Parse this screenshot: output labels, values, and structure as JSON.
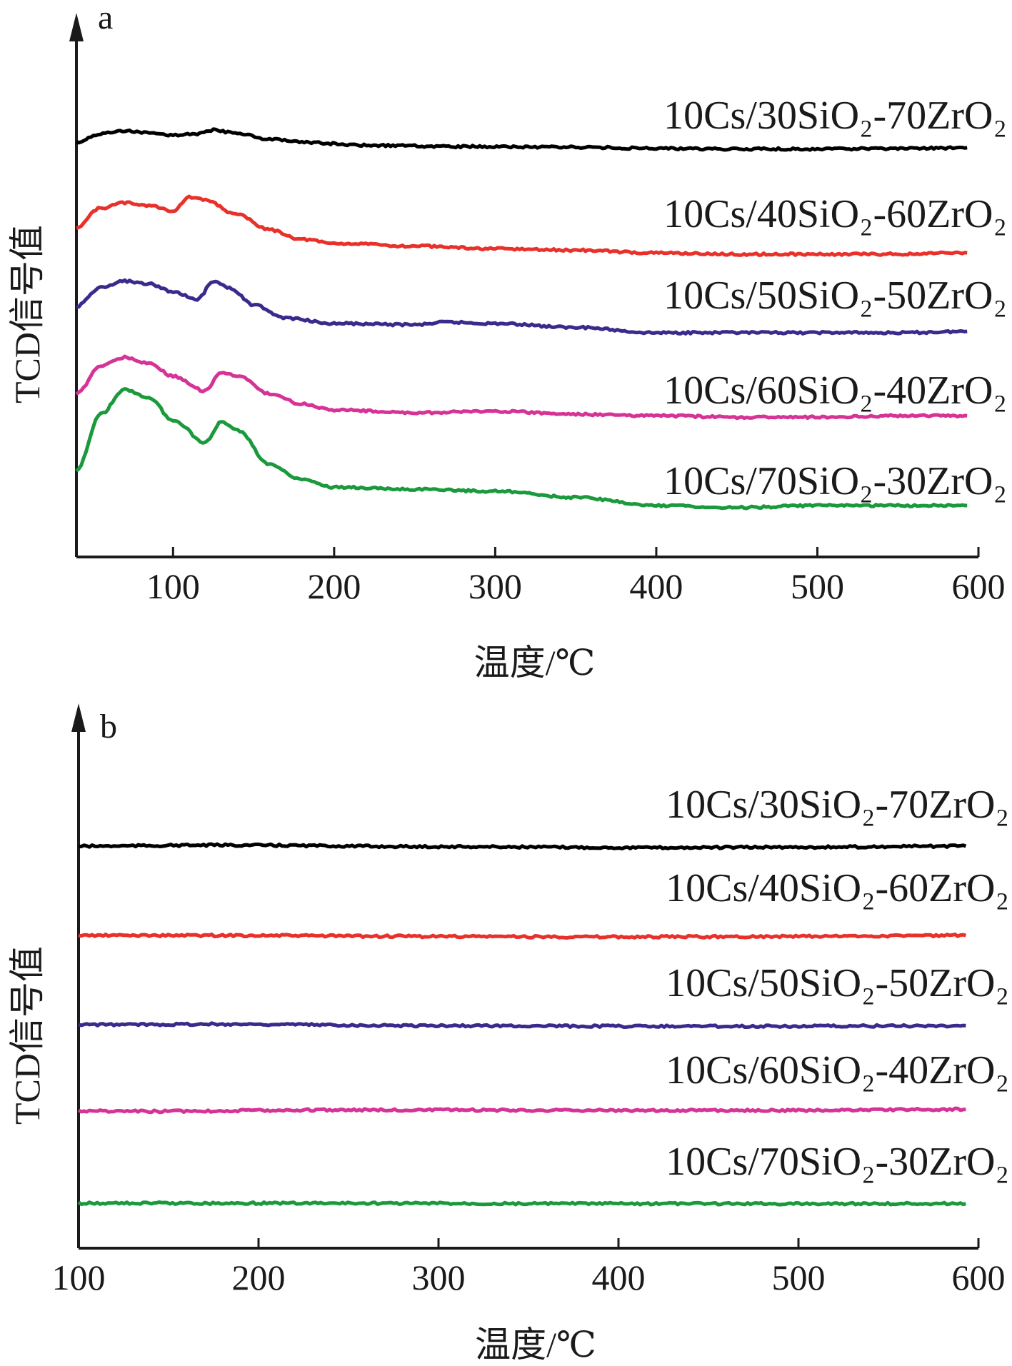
{
  "chart_data": [
    {
      "type": "line",
      "panel_label": "a",
      "xlabel": "温度/℃",
      "ylabel": "TCD信号值",
      "xlim": [
        40,
        600
      ],
      "xticks": [
        100,
        200,
        300,
        400,
        500,
        600
      ],
      "grid": false,
      "legend": "inline-right",
      "series": [
        {
          "name": "10Cs/30SiO₂-70ZrO₂",
          "color": "#000000",
          "points": [
            [
              40,
              0.42
            ],
            [
              55,
              0.56
            ],
            [
              70,
              0.61
            ],
            [
              85,
              0.57
            ],
            [
              100,
              0.54
            ],
            [
              115,
              0.56
            ],
            [
              125,
              0.62
            ],
            [
              140,
              0.57
            ],
            [
              160,
              0.47
            ],
            [
              180,
              0.42
            ],
            [
              220,
              0.37
            ],
            [
              280,
              0.35
            ],
            [
              350,
              0.34
            ],
            [
              400,
              0.32
            ],
            [
              450,
              0.31
            ],
            [
              500,
              0.31
            ],
            [
              550,
              0.32
            ],
            [
              593,
              0.33
            ]
          ]
        },
        {
          "name": "10Cs/40SiO₂-60ZrO₂",
          "color": "#e8312a",
          "points": [
            [
              40,
              0.3
            ],
            [
              55,
              0.44
            ],
            [
              70,
              0.48
            ],
            [
              85,
              0.46
            ],
            [
              100,
              0.42
            ],
            [
              110,
              0.52
            ],
            [
              120,
              0.5
            ],
            [
              140,
              0.39
            ],
            [
              160,
              0.28
            ],
            [
              180,
              0.21
            ],
            [
              200,
              0.18
            ],
            [
              250,
              0.16
            ],
            [
              300,
              0.14
            ],
            [
              350,
              0.13
            ],
            [
              400,
              0.11
            ],
            [
              450,
              0.1
            ],
            [
              500,
              0.1
            ],
            [
              550,
              0.1
            ],
            [
              593,
              0.11
            ]
          ]
        },
        {
          "name": "10Cs/50SiO₂-50ZrO₂",
          "color": "#3a2a8c",
          "points": [
            [
              40,
              0.33
            ],
            [
              55,
              0.47
            ],
            [
              70,
              0.52
            ],
            [
              85,
              0.5
            ],
            [
              100,
              0.44
            ],
            [
              115,
              0.38
            ],
            [
              125,
              0.52
            ],
            [
              135,
              0.47
            ],
            [
              150,
              0.34
            ],
            [
              170,
              0.24
            ],
            [
              200,
              0.2
            ],
            [
              250,
              0.19
            ],
            [
              270,
              0.21
            ],
            [
              300,
              0.2
            ],
            [
              350,
              0.17
            ],
            [
              400,
              0.13
            ],
            [
              450,
              0.13
            ],
            [
              500,
              0.13
            ],
            [
              550,
              0.13
            ],
            [
              593,
              0.14
            ]
          ]
        },
        {
          "name": "10Cs/60SiO₂-40ZrO₂",
          "color": "#d63396",
          "points": [
            [
              40,
              0.31
            ],
            [
              55,
              0.5
            ],
            [
              70,
              0.56
            ],
            [
              85,
              0.52
            ],
            [
              100,
              0.43
            ],
            [
              120,
              0.33
            ],
            [
              130,
              0.46
            ],
            [
              140,
              0.43
            ],
            [
              160,
              0.31
            ],
            [
              180,
              0.24
            ],
            [
              200,
              0.2
            ],
            [
              250,
              0.18
            ],
            [
              300,
              0.19
            ],
            [
              350,
              0.17
            ],
            [
              400,
              0.16
            ],
            [
              450,
              0.15
            ],
            [
              500,
              0.15
            ],
            [
              550,
              0.16
            ],
            [
              593,
              0.16
            ]
          ]
        },
        {
          "name": "10Cs/70SiO₂-30ZrO₂",
          "color": "#1a9a3c",
          "points": [
            [
              40,
              0.3
            ],
            [
              55,
              0.58
            ],
            [
              70,
              0.7
            ],
            [
              85,
              0.66
            ],
            [
              100,
              0.55
            ],
            [
              120,
              0.44
            ],
            [
              130,
              0.54
            ],
            [
              140,
              0.5
            ],
            [
              160,
              0.33
            ],
            [
              180,
              0.26
            ],
            [
              200,
              0.22
            ],
            [
              250,
              0.21
            ],
            [
              300,
              0.2
            ],
            [
              350,
              0.17
            ],
            [
              400,
              0.13
            ],
            [
              450,
              0.12
            ],
            [
              500,
              0.13
            ],
            [
              550,
              0.13
            ],
            [
              593,
              0.13
            ]
          ]
        }
      ]
    },
    {
      "type": "line",
      "panel_label": "b",
      "xlabel": "温度/℃",
      "ylabel": "TCD信号值",
      "xlim": [
        100,
        600
      ],
      "xticks": [
        100,
        200,
        300,
        400,
        500,
        600
      ],
      "grid": false,
      "legend": "inline-right",
      "series": [
        {
          "name": "10Cs/30SiO₂-70ZrO₂",
          "color": "#000000",
          "points": [
            [
              100,
              0.5
            ],
            [
              180,
              0.52
            ],
            [
              300,
              0.49
            ],
            [
              420,
              0.47
            ],
            [
              500,
              0.48
            ],
            [
              593,
              0.5
            ]
          ]
        },
        {
          "name": "10Cs/40SiO₂-60ZrO₂",
          "color": "#e8312a",
          "points": [
            [
              100,
              0.5
            ],
            [
              180,
              0.5
            ],
            [
              300,
              0.48
            ],
            [
              400,
              0.47
            ],
            [
              500,
              0.48
            ],
            [
              593,
              0.5
            ]
          ]
        },
        {
          "name": "10Cs/50SiO₂-50ZrO₂",
          "color": "#3a2a8c",
          "points": [
            [
              100,
              0.5
            ],
            [
              180,
              0.51
            ],
            [
              300,
              0.48
            ],
            [
              400,
              0.47
            ],
            [
              500,
              0.47
            ],
            [
              593,
              0.48
            ]
          ]
        },
        {
          "name": "10Cs/60SiO₂-40ZrO₂",
          "color": "#d63396",
          "points": [
            [
              100,
              0.49
            ],
            [
              130,
              0.48
            ],
            [
              250,
              0.51
            ],
            [
              400,
              0.5
            ],
            [
              500,
              0.5
            ],
            [
              593,
              0.52
            ]
          ]
        },
        {
          "name": "10Cs/70SiO₂-30ZrO₂",
          "color": "#1a9a3c",
          "points": [
            [
              100,
              0.5
            ],
            [
              200,
              0.5
            ],
            [
              400,
              0.49
            ],
            [
              593,
              0.49
            ]
          ]
        }
      ]
    }
  ]
}
